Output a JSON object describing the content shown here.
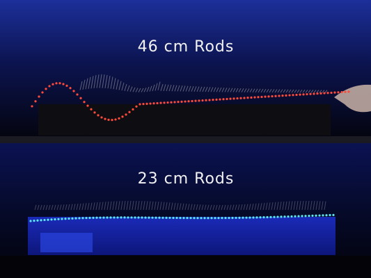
{
  "top_panel": {
    "caption": "46 cm Rods"
  },
  "bottom_panel": {
    "caption": "23 cm Rods"
  }
}
